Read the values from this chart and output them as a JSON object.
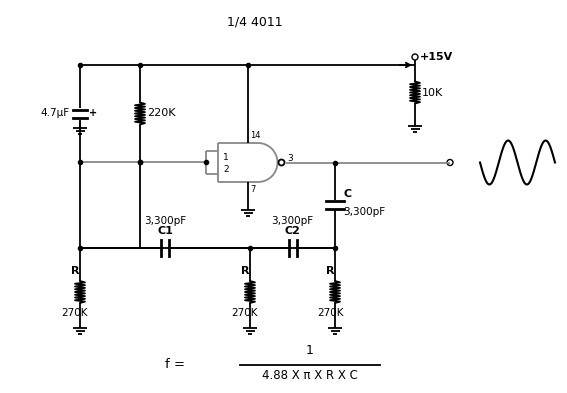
{
  "title": "1/4 4011",
  "bg_color": "#ffffff",
  "line_color": "#000000",
  "gray_color": "#888888",
  "vcc_label": "+15V",
  "formula_den": "4.88 X π X R X C"
}
